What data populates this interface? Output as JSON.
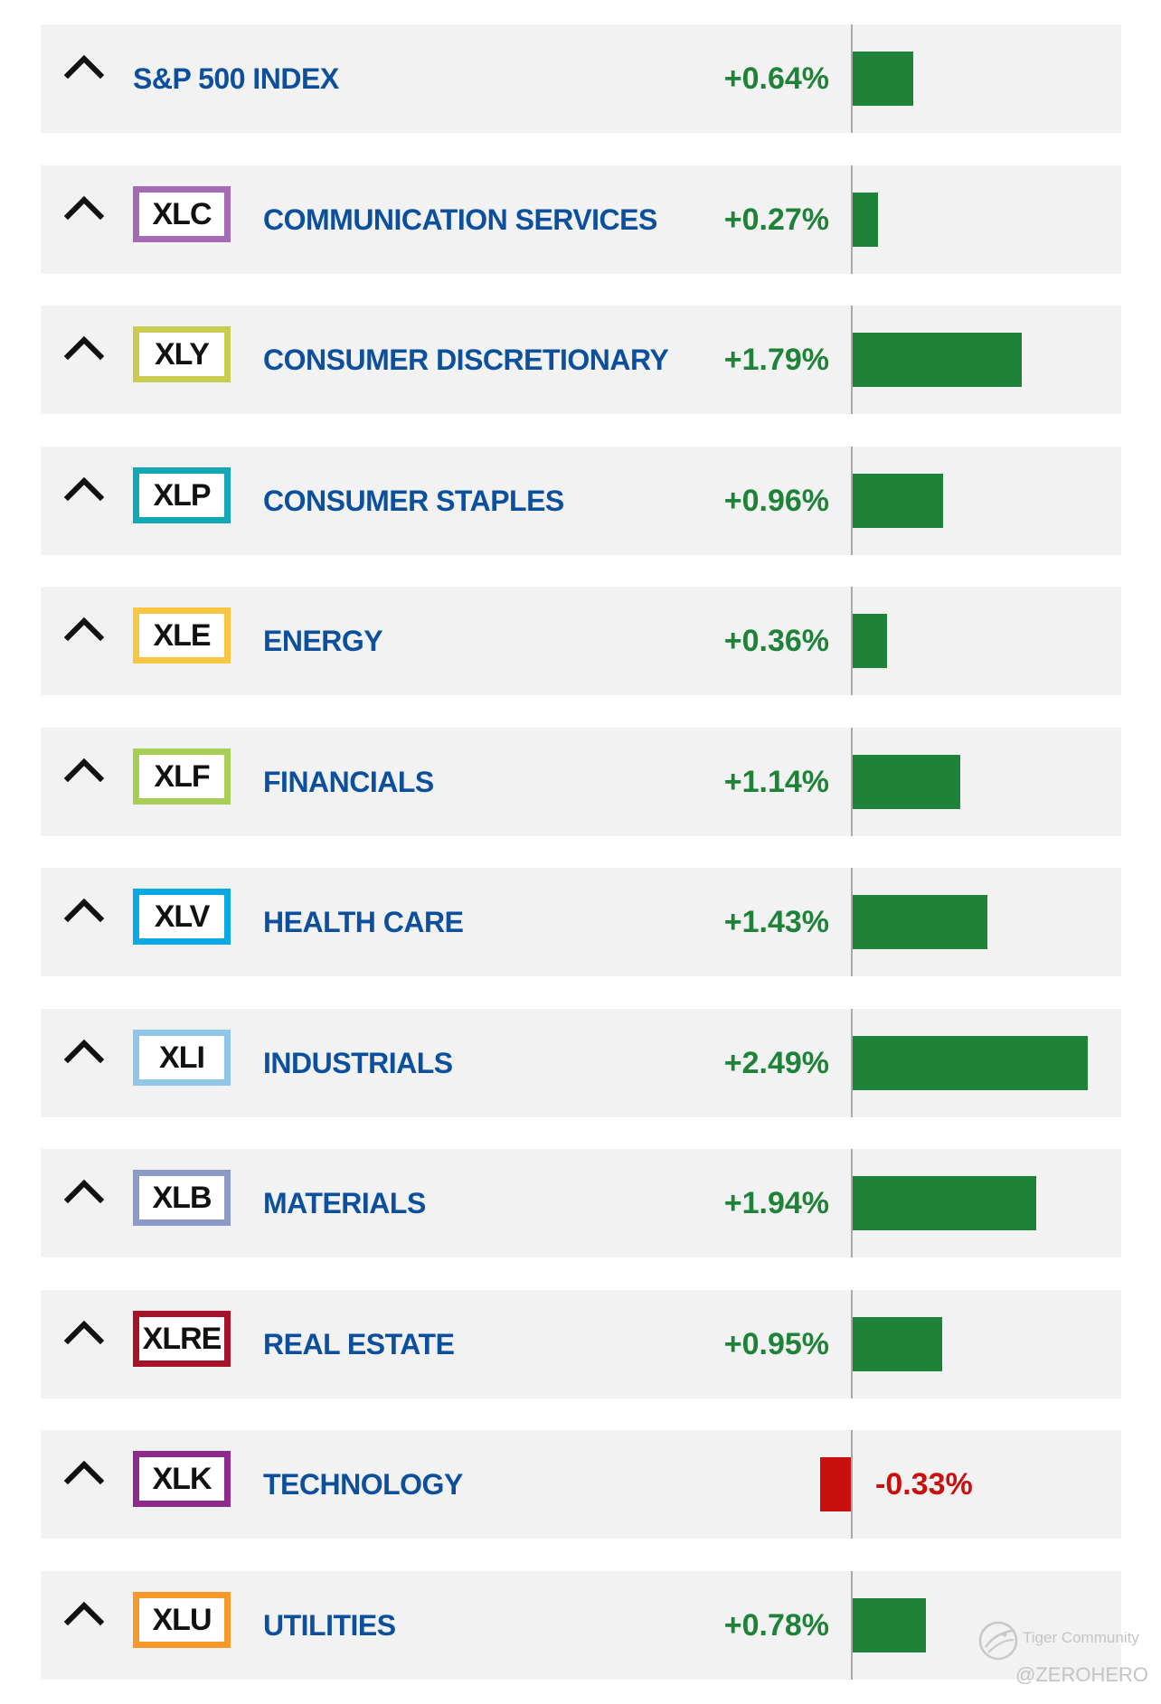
{
  "chart_data": {
    "type": "bar",
    "orientation": "horizontal",
    "title": "",
    "xlabel": "",
    "ylabel": "",
    "grid": false,
    "legend": "none",
    "xlim": [
      -0.35,
      2.6
    ],
    "rows": [
      {
        "ticker": "",
        "name": "S&P 500 INDEX",
        "value": 0.64,
        "label": "+0.64%",
        "ticker_color": ""
      },
      {
        "ticker": "XLC",
        "name": "COMMUNICATION SERVICES",
        "value": 0.27,
        "label": "+0.27%",
        "ticker_color": "#a66bb5"
      },
      {
        "ticker": "XLY",
        "name": "CONSUMER DISCRETIONARY",
        "value": 1.79,
        "label": "+1.79%",
        "ticker_color": "#c9cb53"
      },
      {
        "ticker": "XLP",
        "name": "CONSUMER STAPLES",
        "value": 0.96,
        "label": "+0.96%",
        "ticker_color": "#14a7b6"
      },
      {
        "ticker": "XLE",
        "name": "ENERGY",
        "value": 0.36,
        "label": "+0.36%",
        "ticker_color": "#f9c643"
      },
      {
        "ticker": "XLF",
        "name": "FINANCIALS",
        "value": 1.14,
        "label": "+1.14%",
        "ticker_color": "#a7cf56"
      },
      {
        "ticker": "XLV",
        "name": "HEALTH CARE",
        "value": 1.43,
        "label": "+1.43%",
        "ticker_color": "#0aa9e4"
      },
      {
        "ticker": "XLI",
        "name": "INDUSTRIALS",
        "value": 2.49,
        "label": "+2.49%",
        "ticker_color": "#91c6e8"
      },
      {
        "ticker": "XLB",
        "name": "MATERIALS",
        "value": 1.94,
        "label": "+1.94%",
        "ticker_color": "#8b9ac7"
      },
      {
        "ticker": "XLRE",
        "name": "REAL ESTATE",
        "value": 0.95,
        "label": "+0.95%",
        "ticker_color": "#a6122a"
      },
      {
        "ticker": "XLK",
        "name": "TECHNOLOGY",
        "value": -0.33,
        "label": "-0.33%",
        "ticker_color": "#8d2a8b"
      },
      {
        "ticker": "XLU",
        "name": "UTILITIES",
        "value": 0.78,
        "label": "+0.78%",
        "ticker_color": "#f7982c"
      }
    ]
  },
  "colors": {
    "positive": "#1e8239",
    "negative": "#c8100e",
    "name_text": "#0c4f9c",
    "row_background": "#f2f2f2",
    "axis": "#a9a9a9"
  },
  "icons": {
    "row_expand": "chevron-up-icon",
    "watermark_logo": "tiger-community-logo-icon"
  },
  "watermark": {
    "community": "Tiger Community",
    "handle": "@ZEROHERO"
  }
}
